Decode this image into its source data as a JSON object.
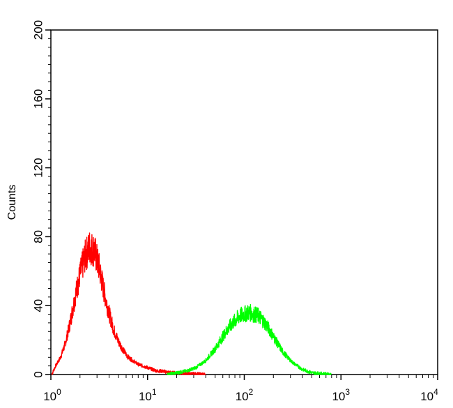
{
  "chart_data": {
    "type": "line",
    "title": "",
    "xlabel": "",
    "ylabel": "Counts",
    "xscale": "log",
    "xlim": [
      1,
      10000
    ],
    "ylim": [
      0,
      200
    ],
    "grid": false,
    "legend": "none",
    "x_ticks": [
      {
        "base": "10",
        "exp": "0",
        "value": 1
      },
      {
        "base": "10",
        "exp": "1",
        "value": 10
      },
      {
        "base": "10",
        "exp": "2",
        "value": 100
      },
      {
        "base": "10",
        "exp": "3",
        "value": 1000
      },
      {
        "base": "10",
        "exp": "4",
        "value": 10000
      }
    ],
    "y_ticks": [
      {
        "label": "0",
        "value": 0
      },
      {
        "label": "40",
        "value": 40
      },
      {
        "label": "80",
        "value": 80
      },
      {
        "label": "120",
        "value": 120
      },
      {
        "label": "160",
        "value": 160
      },
      {
        "label": "200",
        "value": 200
      }
    ],
    "series": [
      {
        "color": "#ff0000",
        "x": [
          1.02,
          1.12,
          1.26,
          1.41,
          1.58,
          1.78,
          2.0,
          2.24,
          2.51,
          2.82,
          3.16,
          3.55,
          3.98,
          4.47,
          5.01,
          5.62,
          6.31,
          7.08,
          7.94,
          8.91,
          10.0,
          11.2,
          12.6,
          14.1,
          15.8,
          17.8,
          20.0,
          25.1,
          31.6,
          40.0
        ],
        "y": [
          0,
          5,
          10,
          18,
          30,
          45,
          58,
          68,
          74,
          72,
          62,
          48,
          36,
          26,
          19,
          14,
          10,
          8,
          6,
          5,
          4,
          3,
          2,
          2,
          1.5,
          1,
          1,
          0.5,
          0.3,
          0
        ]
      },
      {
        "color": "#00ff00",
        "x": [
          15.8,
          20.0,
          25.1,
          31.6,
          39.8,
          50.1,
          63.1,
          70.8,
          79.4,
          89.1,
          100,
          112,
          126,
          141,
          158,
          178,
          200,
          251,
          316,
          398,
          501,
          631,
          794
        ],
        "y": [
          0,
          1,
          2,
          4,
          8,
          15,
          24,
          28,
          31,
          34,
          35,
          36,
          35,
          34,
          31,
          27,
          22,
          13,
          7,
          3,
          1,
          0.5,
          0
        ]
      }
    ]
  }
}
